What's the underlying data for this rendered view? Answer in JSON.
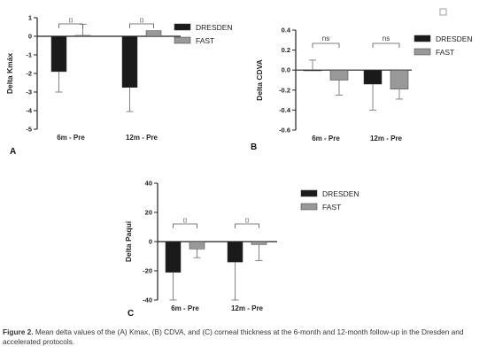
{
  "colors": {
    "dresden": "#1a1a1a",
    "fast": "#999999",
    "axis": "#222222",
    "error": "#777777"
  },
  "charts": [
    {
      "panel": "A",
      "chart_data": {
        "type": "bar",
        "categories": [
          "6m - Pre",
          "12m - Pre"
        ],
        "series": [
          {
            "name": "DRESDEN",
            "values": [
              -1.9,
              -2.75
            ],
            "errors": [
              1.1,
              1.3
            ]
          },
          {
            "name": "FAST",
            "values": [
              0.05,
              0.3
            ],
            "errors": [
              0.6,
              0.0
            ]
          }
        ],
        "ylabel": "Delta Kmáx",
        "ylim": [
          -5,
          1
        ],
        "yticks": [
          1,
          0,
          -1,
          -2,
          -3,
          -4,
          -5
        ],
        "significance": [
          "",
          ""
        ],
        "legend": "right",
        "grid": false
      }
    },
    {
      "panel": "B",
      "chart_data": {
        "type": "bar",
        "categories": [
          "6m - Pre",
          "12m - Pre"
        ],
        "series": [
          {
            "name": "DRESDEN",
            "values": [
              0.0,
              -0.14
            ],
            "errors": [
              0.1,
              0.26
            ]
          },
          {
            "name": "FAST",
            "values": [
              -0.1,
              -0.19
            ],
            "errors": [
              0.15,
              0.1
            ]
          }
        ],
        "ylabel": "Delta CDVA",
        "ylim": [
          -0.6,
          0.4
        ],
        "yticks": [
          0.4,
          0.2,
          0.0,
          -0.2,
          -0.4,
          -0.6
        ],
        "tick_labels": [
          "0.4",
          "0.2",
          "0.0",
          "-0.2",
          "-0.4",
          "-0.6"
        ],
        "significance": [
          "ns",
          "ns"
        ],
        "legend": "right",
        "grid": false
      }
    },
    {
      "panel": "C",
      "chart_data": {
        "type": "bar",
        "categories": [
          "6m - Pre",
          "12m - Pre"
        ],
        "series": [
          {
            "name": "DRESDEN",
            "values": [
              -21,
              -14
            ],
            "errors": [
              19,
              26
            ]
          },
          {
            "name": "FAST",
            "values": [
              -5,
              -2
            ],
            "errors": [
              6,
              11
            ]
          }
        ],
        "ylabel": "Delta Paqui",
        "ylim": [
          -40,
          40
        ],
        "yticks": [
          40,
          20,
          0,
          -20,
          -40
        ],
        "significance": [
          "",
          ""
        ],
        "legend": "right",
        "grid": false
      }
    }
  ],
  "caption": {
    "label": "Figure 2.",
    "text": " Mean delta values of the (A) Kmax, (B) CDVA, and (C) corneal thickness at the 6-month and 12-month follow-up in the Dresden and accelerated protocols."
  }
}
